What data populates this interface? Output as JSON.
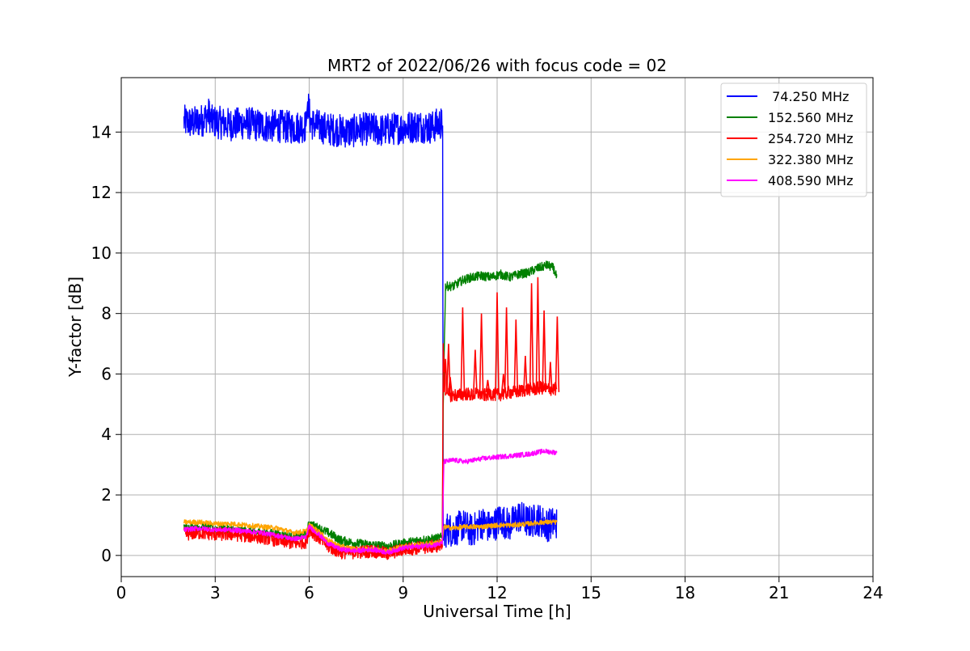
{
  "chart_data": {
    "type": "line",
    "title": "MRT2 of 2022/06/26 with focus code = 02",
    "xlabel": "Universal Time [h]",
    "ylabel": "Y-factor [dB]",
    "xlim": [
      0,
      24
    ],
    "ylim": [
      -0.7,
      15.8
    ],
    "xticks": [
      0,
      3,
      6,
      9,
      12,
      15,
      18,
      21,
      24
    ],
    "yticks": [
      0,
      2,
      4,
      6,
      8,
      10,
      12,
      14
    ],
    "grid": true,
    "legend_position": "top-right",
    "series": [
      {
        "name": " 74.250 MHz",
        "color": "#0000ff",
        "x": [
          2.0,
          2.3,
          2.6,
          2.8,
          2.9,
          3.2,
          3.5,
          4.0,
          4.5,
          5.0,
          5.5,
          5.9,
          5.95,
          6.05,
          6.3,
          6.6,
          7.0,
          7.3,
          7.6,
          8.0,
          8.3,
          8.6,
          9.0,
          9.5,
          9.9,
          10.2,
          10.26,
          10.28,
          10.4,
          10.6,
          10.9,
          11.2,
          11.5,
          11.8,
          12.1,
          12.4,
          12.7,
          13.0,
          13.3,
          13.6,
          13.9
        ],
        "y": [
          14.35,
          14.3,
          14.4,
          14.6,
          14.35,
          14.3,
          14.25,
          14.3,
          14.2,
          14.2,
          14.15,
          14.2,
          15.0,
          14.3,
          14.2,
          14.1,
          14.05,
          14.0,
          14.1,
          14.1,
          14.05,
          14.1,
          14.15,
          14.2,
          14.15,
          14.3,
          14.2,
          0.5,
          0.9,
          0.8,
          1.0,
          0.8,
          1.1,
          0.9,
          1.2,
          1.0,
          1.3,
          1.1,
          1.2,
          1.0,
          1.1
        ],
        "band": 0.55
      },
      {
        "name": "152.560 MHz",
        "color": "#008000",
        "x": [
          2.0,
          2.5,
          3.0,
          3.5,
          4.0,
          4.5,
          5.0,
          5.5,
          5.9,
          6.0,
          6.3,
          6.7,
          7.0,
          7.5,
          8.0,
          8.5,
          9.0,
          9.5,
          10.0,
          10.25,
          10.28,
          10.35,
          10.6,
          10.9,
          11.2,
          11.5,
          11.8,
          12.1,
          12.4,
          12.7,
          13.0,
          13.3,
          13.6,
          13.8,
          13.9
        ],
        "y": [
          0.9,
          0.95,
          0.9,
          0.85,
          0.8,
          0.75,
          0.7,
          0.6,
          0.7,
          1.05,
          0.9,
          0.7,
          0.5,
          0.4,
          0.35,
          0.3,
          0.4,
          0.5,
          0.55,
          0.6,
          5.0,
          8.9,
          8.9,
          9.1,
          9.2,
          9.25,
          9.2,
          9.3,
          9.2,
          9.3,
          9.35,
          9.5,
          9.6,
          9.5,
          9.2
        ],
        "band": 0.15
      },
      {
        "name": "254.720 MHz",
        "color": "#ff0000",
        "x": [
          2.0,
          2.5,
          3.0,
          3.5,
          4.0,
          4.5,
          5.0,
          5.5,
          5.9,
          6.0,
          6.3,
          6.6,
          7.0,
          7.5,
          8.0,
          8.5,
          9.0,
          9.5,
          10.0,
          10.25,
          10.28,
          10.35,
          10.4,
          10.45,
          10.6,
          10.8,
          11.0,
          11.2,
          11.4,
          11.6,
          11.8,
          12.0,
          12.2,
          12.4,
          12.6,
          12.8,
          13.0,
          13.2,
          13.4,
          13.6,
          13.9
        ],
        "y": [
          0.7,
          0.75,
          0.7,
          0.7,
          0.65,
          0.6,
          0.5,
          0.4,
          0.45,
          0.85,
          0.6,
          0.3,
          0.1,
          0.1,
          0.15,
          0.05,
          0.2,
          0.25,
          0.3,
          0.35,
          7.0,
          5.3,
          5.4,
          5.3,
          5.3,
          5.3,
          5.35,
          5.3,
          5.35,
          5.3,
          5.35,
          5.3,
          5.35,
          5.4,
          5.4,
          5.45,
          5.5,
          5.5,
          5.55,
          5.5,
          5.5
        ],
        "band": 0.22,
        "spikes": [
          [
            10.35,
            6.5
          ],
          [
            10.45,
            7.0
          ],
          [
            10.5,
            5.9
          ],
          [
            10.9,
            8.2
          ],
          [
            11.3,
            6.8
          ],
          [
            11.5,
            8.0
          ],
          [
            11.7,
            5.8
          ],
          [
            12.0,
            8.7
          ],
          [
            12.2,
            6.0
          ],
          [
            12.3,
            8.2
          ],
          [
            12.6,
            7.8
          ],
          [
            12.9,
            6.6
          ],
          [
            13.1,
            9.0
          ],
          [
            13.3,
            9.2
          ],
          [
            13.5,
            8.1
          ],
          [
            13.7,
            6.4
          ],
          [
            13.92,
            7.9
          ]
        ]
      },
      {
        "name": "322.380 MHz",
        "color": "#ffa500",
        "x": [
          2.0,
          2.5,
          3.0,
          3.5,
          4.0,
          4.5,
          5.0,
          5.5,
          5.9,
          6.0,
          6.3,
          6.6,
          7.0,
          7.5,
          8.0,
          8.5,
          9.0,
          9.5,
          10.0,
          10.25,
          10.3,
          10.6,
          11.0,
          11.5,
          12.0,
          12.5,
          13.0,
          13.5,
          13.9
        ],
        "y": [
          1.1,
          1.1,
          1.05,
          1.05,
          1.0,
          0.95,
          0.9,
          0.75,
          0.8,
          1.0,
          0.8,
          0.5,
          0.3,
          0.2,
          0.2,
          0.15,
          0.3,
          0.35,
          0.4,
          0.45,
          0.95,
          0.9,
          0.95,
          0.95,
          1.0,
          1.0,
          1.05,
          1.1,
          1.1
        ],
        "band": 0.08
      },
      {
        "name": "408.590 MHz",
        "color": "#ff00ff",
        "x": [
          2.0,
          2.5,
          3.0,
          3.5,
          4.0,
          4.5,
          5.0,
          5.5,
          5.9,
          6.0,
          6.3,
          6.6,
          7.0,
          7.5,
          8.0,
          8.5,
          9.0,
          9.5,
          10.0,
          10.25,
          10.3,
          10.6,
          11.0,
          11.5,
          12.0,
          12.5,
          13.0,
          13.5,
          13.9
        ],
        "y": [
          0.85,
          0.9,
          0.85,
          0.85,
          0.8,
          0.75,
          0.65,
          0.55,
          0.6,
          0.95,
          0.7,
          0.4,
          0.2,
          0.15,
          0.2,
          0.1,
          0.25,
          0.3,
          0.35,
          0.4,
          3.1,
          3.15,
          3.1,
          3.2,
          3.25,
          3.3,
          3.35,
          3.45,
          3.4
        ],
        "band": 0.08
      }
    ]
  }
}
